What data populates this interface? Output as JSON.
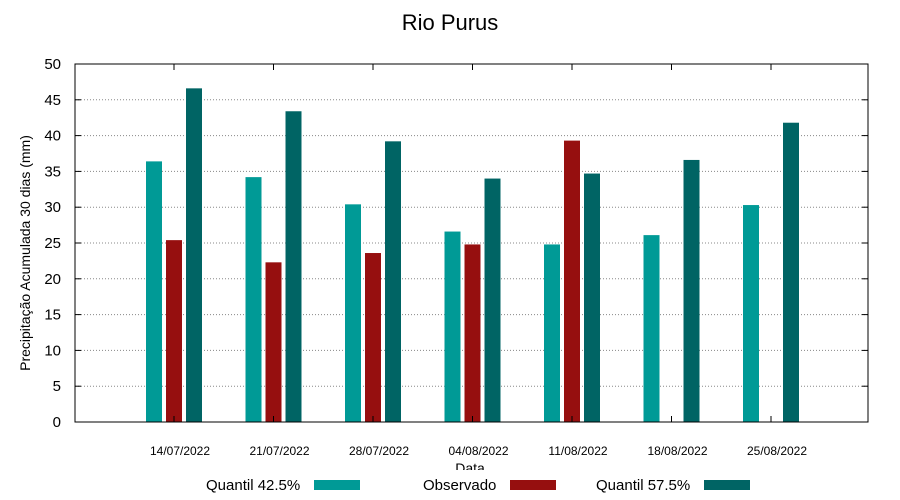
{
  "chart_data": {
    "type": "bar",
    "title": "Rio Purus",
    "xlabel": "Data",
    "ylabel": "Precipitação Acumulada 30 dias (mm)",
    "ylim": [
      0,
      50
    ],
    "yticks": [
      0,
      5,
      10,
      15,
      20,
      25,
      30,
      35,
      40,
      45,
      50
    ],
    "grid": true,
    "legend_position": "bottom",
    "categories": [
      "14/07/2022",
      "21/07/2022",
      "28/07/2022",
      "04/08/2022",
      "11/08/2022",
      "18/08/2022",
      "25/08/2022"
    ],
    "series": [
      {
        "name": "Quantil 42.5%",
        "color": "#009a96",
        "values": [
          36.4,
          34.2,
          30.4,
          26.6,
          24.8,
          26.1,
          30.3
        ]
      },
      {
        "name": "Observado",
        "color": "#960f0f",
        "values": [
          25.4,
          22.3,
          23.6,
          24.8,
          39.3,
          null,
          null
        ]
      },
      {
        "name": "Quantil 57.5%",
        "color": "#006464",
        "values": [
          46.6,
          43.4,
          39.2,
          34.0,
          34.7,
          36.6,
          41.8
        ]
      }
    ]
  }
}
